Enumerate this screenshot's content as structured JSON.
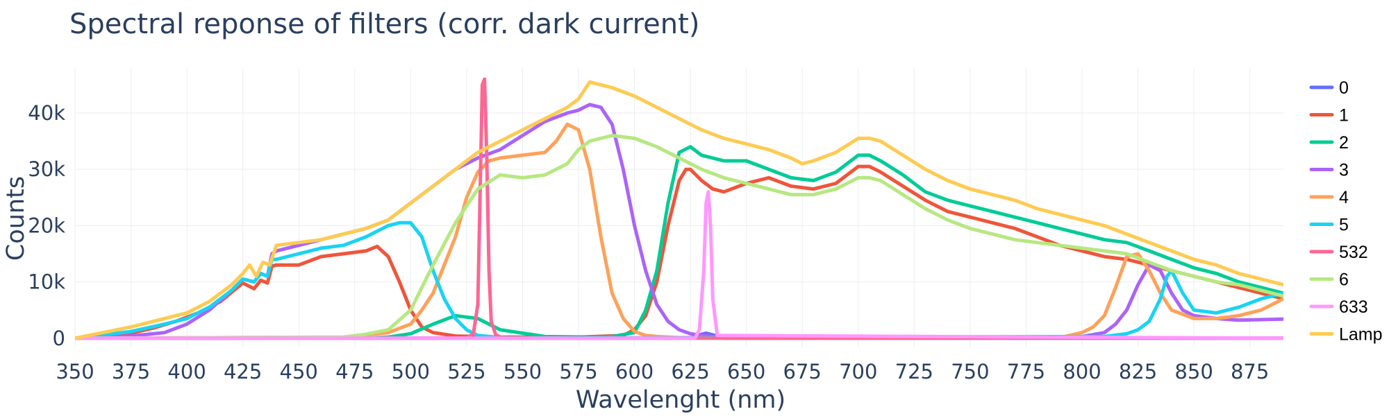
{
  "chart_data": {
    "type": "line",
    "title": "Spectral reponse of filters (corr. dark current)",
    "xlabel": "Wavelenght (nm)",
    "ylabel": "Counts",
    "xlim": [
      350,
      890
    ],
    "ylim": [
      -1500,
      48000
    ],
    "x_ticks": [
      350,
      375,
      400,
      425,
      450,
      475,
      500,
      525,
      550,
      575,
      600,
      625,
      650,
      675,
      700,
      725,
      750,
      775,
      800,
      825,
      850,
      875
    ],
    "x_tick_labels": [
      "350",
      "375",
      "400",
      "425",
      "450",
      "475",
      "500",
      "525",
      "550",
      "575",
      "600",
      "625",
      "650",
      "675",
      "700",
      "725",
      "750",
      "775",
      "800",
      "825",
      "850",
      "875"
    ],
    "y_ticks": [
      0,
      10000,
      20000,
      30000,
      40000
    ],
    "y_tick_labels": [
      "0",
      "10k",
      "20k",
      "30k",
      "40k"
    ],
    "grid": true,
    "legend_position": "right",
    "series": [
      {
        "name": "0",
        "color": "#636efa",
        "x": [
          350,
          625,
          628,
          632,
          636,
          640,
          890
        ],
        "y": [
          0,
          0,
          500,
          900,
          500,
          0,
          0
        ]
      },
      {
        "name": "1",
        "color": "#ef553b",
        "x": [
          350,
          360,
          375,
          385,
          395,
          405,
          415,
          425,
          430,
          433,
          436,
          438,
          440,
          450,
          460,
          470,
          480,
          485,
          490,
          495,
          500,
          505,
          510,
          520,
          530,
          540,
          550,
          575,
          595,
          600,
          605,
          610,
          615,
          620,
          623,
          625,
          630,
          635,
          640,
          650,
          660,
          670,
          680,
          690,
          700,
          705,
          710,
          720,
          730,
          740,
          750,
          760,
          770,
          780,
          790,
          800,
          810,
          820,
          830,
          840,
          850,
          860,
          870,
          880,
          890
        ],
        "y": [
          0,
          400,
          900,
          1800,
          3000,
          4500,
          6500,
          9800,
          8800,
          10300,
          9800,
          12800,
          13000,
          13000,
          14500,
          15000,
          15500,
          16300,
          14500,
          10000,
          5000,
          2000,
          1000,
          400,
          300,
          200,
          200,
          200,
          500,
          1500,
          4000,
          10000,
          20000,
          28000,
          30000,
          30000,
          28000,
          26500,
          26000,
          27500,
          28500,
          27000,
          26500,
          27500,
          30500,
          30500,
          29500,
          27000,
          24500,
          22500,
          21500,
          20500,
          19500,
          18000,
          16500,
          15500,
          14500,
          14000,
          13000,
          12000,
          11000,
          10000,
          9000,
          8000,
          7000
        ]
      },
      {
        "name": "2",
        "color": "#00cc96",
        "x": [
          350,
          480,
          490,
          500,
          510,
          520,
          530,
          540,
          560,
          580,
          590,
          600,
          605,
          610,
          615,
          620,
          625,
          630,
          640,
          650,
          660,
          670,
          680,
          690,
          700,
          705,
          710,
          720,
          730,
          740,
          750,
          760,
          770,
          780,
          790,
          800,
          810,
          820,
          830,
          840,
          850,
          860,
          870,
          880,
          890
        ],
        "y": [
          0,
          0,
          200,
          800,
          2500,
          4000,
          3500,
          1500,
          300,
          200,
          300,
          1000,
          5000,
          12000,
          24000,
          33000,
          34000,
          32500,
          31500,
          31500,
          30000,
          28500,
          28000,
          29500,
          32500,
          32500,
          31500,
          29000,
          26000,
          24500,
          23500,
          22500,
          21500,
          20500,
          19500,
          18500,
          17500,
          17000,
          15500,
          14000,
          12500,
          11500,
          10000,
          9000,
          8000
        ]
      },
      {
        "name": "3",
        "color": "#ab63fa",
        "x": [
          350,
          375,
          390,
          400,
          410,
          420,
          425,
          430,
          433,
          436,
          438,
          440,
          450,
          460,
          470,
          480,
          490,
          500,
          510,
          520,
          530,
          540,
          550,
          560,
          570,
          575,
          580,
          585,
          590,
          595,
          600,
          605,
          610,
          615,
          620,
          625,
          630,
          635,
          640,
          650,
          800,
          810,
          815,
          820,
          825,
          830,
          835,
          840,
          845,
          850,
          860,
          870,
          880,
          890
        ],
        "y": [
          0,
          400,
          1000,
          2500,
          5000,
          8500,
          10500,
          10000,
          11500,
          11000,
          15000,
          15500,
          16500,
          17500,
          18500,
          19500,
          21000,
          24000,
          27000,
          30000,
          32000,
          33500,
          36000,
          38500,
          40000,
          40500,
          41500,
          41000,
          38000,
          30000,
          20000,
          12000,
          6000,
          3000,
          1500,
          800,
          500,
          300,
          200,
          100,
          300,
          1000,
          2500,
          5000,
          9500,
          13000,
          12000,
          8000,
          5000,
          4000,
          3500,
          3200,
          3300,
          3400
        ]
      },
      {
        "name": "4",
        "color": "#ffa15a",
        "x": [
          350,
          470,
          480,
          490,
          500,
          505,
          510,
          520,
          525,
          530,
          535,
          540,
          550,
          560,
          565,
          570,
          575,
          580,
          585,
          590,
          595,
          600,
          605,
          610,
          615,
          620,
          630,
          640,
          790,
          800,
          805,
          810,
          815,
          820,
          825,
          830,
          835,
          840,
          850,
          860,
          870,
          880,
          890
        ],
        "y": [
          0,
          200,
          600,
          1000,
          2500,
          5000,
          8000,
          18000,
          25000,
          29500,
          31500,
          32000,
          32500,
          33000,
          35000,
          38000,
          37000,
          30000,
          18000,
          8000,
          3500,
          1200,
          500,
          300,
          200,
          100,
          100,
          100,
          100,
          1000,
          2000,
          4000,
          9000,
          14500,
          15000,
          12000,
          8000,
          5000,
          3500,
          3500,
          4000,
          5000,
          7000
        ]
      },
      {
        "name": "5",
        "color": "#19d3f3",
        "x": [
          350,
          375,
          390,
          400,
          410,
          420,
          425,
          430,
          433,
          436,
          438,
          440,
          450,
          460,
          470,
          480,
          490,
          495,
          500,
          505,
          510,
          515,
          520,
          525,
          530,
          540,
          550,
          810,
          820,
          825,
          830,
          835,
          838,
          840,
          845,
          850,
          860,
          870,
          880,
          890
        ],
        "y": [
          0,
          1200,
          2500,
          3500,
          5500,
          8500,
          10500,
          10000,
          11500,
          11000,
          14000,
          14000,
          15000,
          16000,
          16500,
          18000,
          20000,
          20500,
          20500,
          18000,
          12000,
          7000,
          3500,
          1500,
          500,
          100,
          0,
          300,
          800,
          1500,
          3000,
          7000,
          11000,
          12000,
          8000,
          5000,
          4500,
          5500,
          7000,
          8000
        ]
      },
      {
        "name": "532",
        "color": "#ff6692",
        "x": [
          350,
          525,
          528,
          530,
          531,
          532,
          533,
          534,
          535,
          536,
          538,
          541,
          890
        ],
        "y": [
          0,
          0,
          800,
          6000,
          25000,
          45000,
          46000,
          32000,
          12000,
          3000,
          600,
          0,
          0
        ]
      },
      {
        "name": "6",
        "color": "#b6e880",
        "x": [
          350,
          470,
          480,
          490,
          500,
          505,
          510,
          520,
          530,
          540,
          550,
          560,
          570,
          575,
          580,
          590,
          600,
          610,
          620,
          630,
          640,
          650,
          660,
          670,
          680,
          690,
          700,
          705,
          710,
          720,
          730,
          740,
          750,
          760,
          770,
          780,
          790,
          800,
          810,
          820,
          830,
          840,
          850,
          860,
          870,
          880,
          890
        ],
        "y": [
          0,
          200,
          700,
          1500,
          5000,
          9000,
          13000,
          20500,
          26500,
          29000,
          28500,
          29000,
          31000,
          33500,
          35000,
          36000,
          35500,
          34000,
          32000,
          30000,
          28500,
          27500,
          26500,
          25500,
          25500,
          26500,
          28500,
          28500,
          28000,
          25500,
          23000,
          21000,
          19500,
          18500,
          17500,
          17000,
          16500,
          16000,
          15500,
          15000,
          13500,
          12000,
          11000,
          10000,
          9500,
          8500,
          7500
        ]
      },
      {
        "name": "633",
        "color": "#ff97ff",
        "x": [
          350,
          627,
          629,
          631,
          632,
          633,
          634,
          635,
          637,
          890
        ],
        "y": [
          0,
          0,
          1500,
          12000,
          24000,
          26000,
          20000,
          7000,
          500,
          0
        ]
      },
      {
        "name": "Lamp",
        "color": "#fecb52",
        "x": [
          350,
          375,
          390,
          400,
          410,
          420,
          425,
          428,
          431,
          434,
          437,
          440,
          450,
          460,
          470,
          480,
          490,
          500,
          510,
          520,
          530,
          540,
          550,
          560,
          570,
          575,
          580,
          590,
          600,
          610,
          620,
          630,
          640,
          650,
          660,
          670,
          675,
          680,
          690,
          700,
          705,
          710,
          720,
          730,
          740,
          750,
          760,
          770,
          780,
          790,
          800,
          810,
          820,
          830,
          840,
          850,
          860,
          870,
          880,
          890
        ],
        "y": [
          0,
          2000,
          3500,
          4500,
          6500,
          9500,
          11500,
          13000,
          11000,
          13500,
          13000,
          16500,
          17000,
          17500,
          18500,
          19500,
          21000,
          24000,
          27000,
          30000,
          33000,
          35000,
          37000,
          39000,
          41000,
          42500,
          45500,
          44500,
          43000,
          41000,
          39000,
          37000,
          35500,
          34500,
          33500,
          32000,
          31000,
          31500,
          33000,
          35500,
          35500,
          35000,
          32500,
          30000,
          28000,
          26500,
          25500,
          24500,
          23000,
          22000,
          21000,
          20000,
          18500,
          17000,
          15500,
          14000,
          13000,
          11500,
          10500,
          9500
        ]
      }
    ]
  }
}
